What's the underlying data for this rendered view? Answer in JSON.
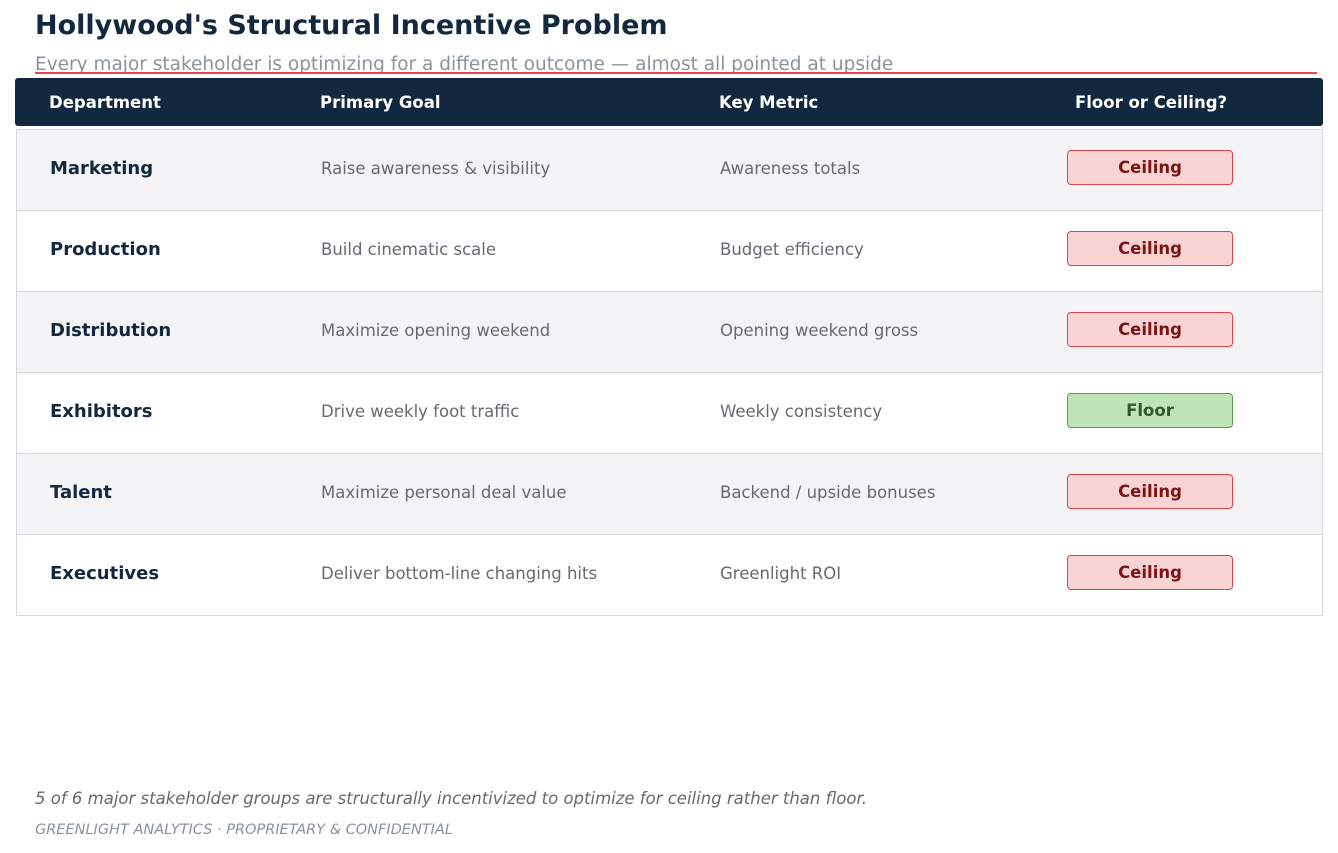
{
  "header": {
    "title": "Hollywood's Structural Incentive Problem",
    "subtitle": "Every major stakeholder is optimizing for a different outcome — almost all pointed at upside"
  },
  "table": {
    "columns": [
      "Department",
      "Primary Goal",
      "Key Metric",
      "Floor or Ceiling?"
    ],
    "rows": [
      {
        "department": "Marketing",
        "goal": "Raise awareness & visibility",
        "metric": "Awareness totals",
        "verdict": "Ceiling"
      },
      {
        "department": "Production",
        "goal": "Build cinematic scale",
        "metric": "Budget efficiency",
        "verdict": "Ceiling"
      },
      {
        "department": "Distribution",
        "goal": "Maximize opening weekend",
        "metric": "Opening weekend gross",
        "verdict": "Ceiling"
      },
      {
        "department": "Exhibitors",
        "goal": "Drive weekly foot traffic",
        "metric": "Weekly consistency",
        "verdict": "Floor"
      },
      {
        "department": "Talent",
        "goal": "Maximize personal deal value",
        "metric": "Backend / upside bonuses",
        "verdict": "Ceiling"
      },
      {
        "department": "Executives",
        "goal": "Deliver bottom-line changing hits",
        "metric": "Greenlight ROI",
        "verdict": "Ceiling"
      }
    ]
  },
  "colors": {
    "header_bg": "#12283e",
    "accent_rule": "#e8464e",
    "ceiling_bg": "#f9d4d5",
    "ceiling_text": "#7c1416",
    "floor_bg": "#bfe5b6",
    "floor_text": "#2f5a2a"
  },
  "footnote": "5 of 6 major stakeholder groups are structurally incentivized to optimize for ceiling rather than floor.",
  "footer": "GREENLIGHT ANALYTICS  ·  PROPRIETARY & CONFIDENTIAL"
}
